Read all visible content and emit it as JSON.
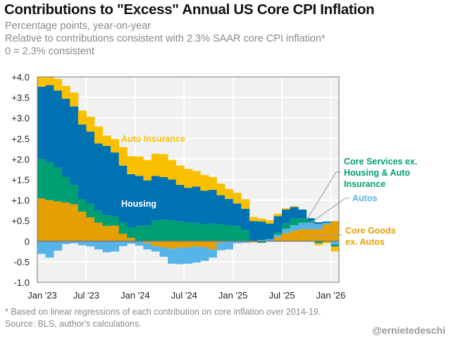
{
  "header": {
    "title": "Contributions to \"Excess\" Annual US Core CPI Inflation",
    "subtitle_lines": [
      "Percentage points, year-on-year",
      "Relative to contributions consistent with 2.3% SAAR core CPI inflation*",
      "0 = 2.3% consistent"
    ]
  },
  "footer": {
    "note": "* Based on linear regressions of each contribution on core inflation over 2014-19.",
    "source": "Source: BLS, author's calculations.",
    "handle": "@ernietedeschi"
  },
  "chart_data": {
    "type": "bar",
    "stacked": true,
    "frequency": "monthly",
    "x_start": "Jan '23",
    "x_end": "Jan '26",
    "ylim": [
      -1.0,
      4.0
    ],
    "y_ticks": [
      "+4.0",
      "+3.5",
      "+3.0",
      "+2.5",
      "+2.0",
      "+1.5",
      "+1.0",
      "+0.5",
      "0",
      "-0.5",
      "-1.0"
    ],
    "y_tick_values": [
      4,
      3.5,
      3,
      2.5,
      2,
      1.5,
      1,
      0.5,
      0,
      -0.5,
      -1
    ],
    "x_ticks": [
      "Jan '23",
      "Jul '23",
      "Jan '24",
      "Jul '24",
      "Jan '25",
      "Jul '25",
      "Jan '26"
    ],
    "x_tick_months": [
      0,
      6,
      12,
      18,
      24,
      30,
      36
    ],
    "grid": true,
    "series": [
      {
        "name": "Core Goods ex. Autos",
        "label_lines": [
          "Core Goods",
          "ex. Autos"
        ],
        "color": "#E69F00",
        "values": [
          1.04,
          1.0,
          0.97,
          0.94,
          0.9,
          0.72,
          0.58,
          0.45,
          0.37,
          0.38,
          0.18,
          0.08,
          -0.01,
          -0.05,
          -0.12,
          -0.15,
          -0.18,
          -0.16,
          -0.15,
          -0.13,
          -0.15,
          -0.2,
          -0.03,
          0,
          0,
          0,
          -0.03,
          0,
          0,
          0.09,
          0.19,
          0.25,
          0.29,
          0.29,
          0.29,
          0.41,
          0.49
        ]
      },
      {
        "name": "Autos",
        "label_lines": [
          "Autos"
        ],
        "color": "#56B4E9",
        "values": [
          -0.31,
          -0.4,
          -0.23,
          -0.07,
          -0.05,
          -0.1,
          -0.13,
          -0.2,
          -0.27,
          -0.25,
          -0.12,
          -0.06,
          -0.1,
          -0.15,
          -0.13,
          -0.23,
          -0.37,
          -0.4,
          -0.4,
          -0.39,
          -0.33,
          -0.2,
          -0.19,
          -0.2,
          -0.05,
          -0.04,
          0,
          0.03,
          0.05,
          0.07,
          0.11,
          0.14,
          0.16,
          0.16,
          0.13,
          0.04,
          -0.08
        ]
      },
      {
        "name": "Core Services ex. Housing & Auto Insurance",
        "label_lines": [
          "Core Services ex.",
          "Housing & Auto",
          "Insurance"
        ],
        "color": "#009E73",
        "values": [
          0.96,
          0.93,
          0.82,
          0.62,
          0.47,
          0.3,
          0.33,
          0.29,
          0.26,
          0.22,
          0.27,
          0.25,
          0.37,
          0.38,
          0.5,
          0.53,
          0.5,
          0.48,
          0.45,
          0.45,
          0.41,
          0.43,
          0.41,
          0.38,
          0.37,
          0.27,
          0,
          -0.04,
          0,
          0.06,
          0.13,
          0.16,
          0.11,
          0.04,
          -0.05,
          0,
          -0.03
        ]
      },
      {
        "name": "Housing",
        "label_lines": [
          "Housing"
        ],
        "color": "#0072B2",
        "values": [
          1.76,
          1.87,
          1.88,
          1.91,
          1.91,
          1.82,
          1.76,
          1.64,
          1.69,
          1.56,
          1.39,
          1.3,
          1.22,
          1.1,
          1.09,
          1.03,
          1.0,
          0.89,
          0.85,
          0.88,
          0.82,
          0.82,
          0.71,
          0.65,
          0.55,
          0.52,
          0.49,
          0.45,
          0.38,
          0.39,
          0.34,
          0.28,
          0.21,
          0.07,
          0.04,
          0.03,
          -0.02
        ]
      },
      {
        "name": "Auto Insurance",
        "label_lines": [
          "Auto Insurance"
        ],
        "color": "#F9C000",
        "values": [
          0.24,
          0.2,
          0.28,
          0.31,
          0.34,
          0.34,
          0.36,
          0.41,
          0.25,
          0.33,
          0.45,
          0.44,
          0.47,
          0.5,
          0.54,
          0.56,
          0.48,
          0.47,
          0.46,
          0.38,
          0.38,
          0.31,
          0.28,
          0.24,
          0.26,
          0.23,
          0.1,
          0.07,
          0.08,
          0.06,
          0.03,
          0.02,
          0,
          0,
          -0.05,
          -0.05,
          -0.12
        ]
      }
    ]
  }
}
